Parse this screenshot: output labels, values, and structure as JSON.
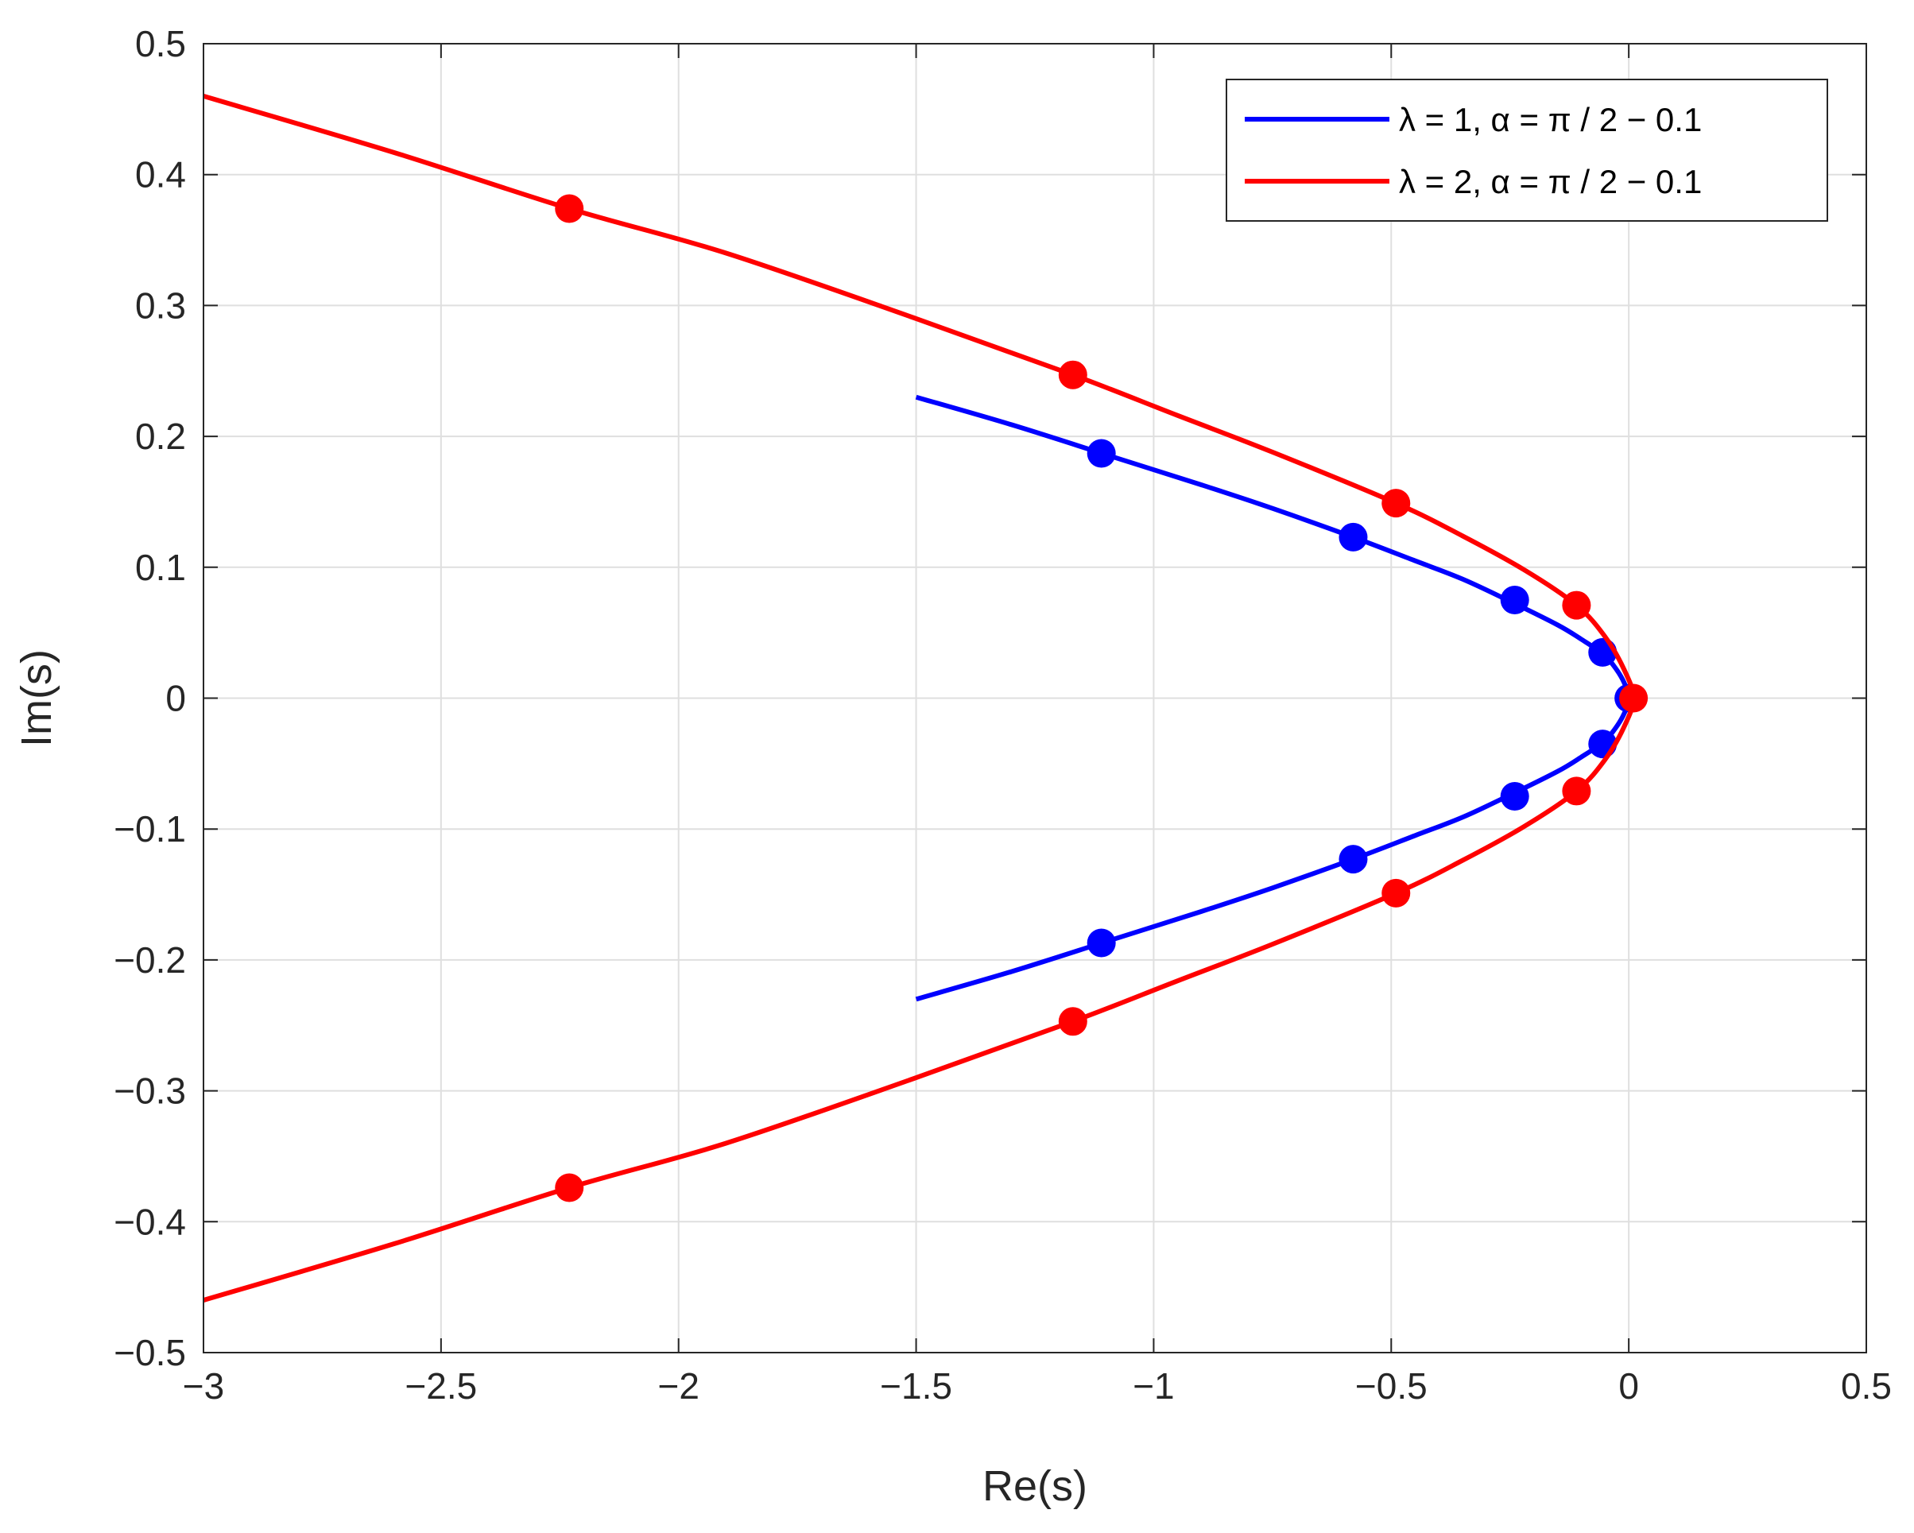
{
  "chart_data": {
    "type": "line",
    "title": "",
    "xlabel": "Re(s)",
    "ylabel": "Im(s)",
    "xlim": [
      -3,
      0.5
    ],
    "ylim": [
      -0.5,
      0.5
    ],
    "xticks": [
      -3,
      -2.5,
      -2,
      -1.5,
      -1,
      -0.5,
      0,
      0.5
    ],
    "xtick_labels": [
      "−3",
      "−2.5",
      "−2",
      "−1.5",
      "−1",
      "−0.5",
      "0",
      "0.5"
    ],
    "yticks": [
      -0.5,
      -0.4,
      -0.3,
      -0.2,
      -0.1,
      0,
      0.1,
      0.2,
      0.3,
      0.4,
      0.5
    ],
    "ytick_labels": [
      "−0.5",
      "−0.4",
      "−0.3",
      "−0.2",
      "−0.1",
      "0",
      "0.1",
      "0.2",
      "0.3",
      "0.4",
      "0.5"
    ],
    "grid": true,
    "legend_position": "top-right",
    "series": [
      {
        "name": "λ = 1, α = π / 2 − 0.1",
        "color": "#0000ff",
        "curve": {
          "x": [
            -1.5,
            -1.3,
            -1.1,
            -0.9,
            -0.75,
            -0.58,
            -0.45,
            -0.35,
            -0.25,
            -0.15,
            -0.1,
            -0.055,
            -0.03,
            -0.01,
            0.0,
            -0.01,
            -0.03,
            -0.055,
            -0.1,
            -0.15,
            -0.25,
            -0.35,
            -0.45,
            -0.58,
            -0.75,
            -0.9,
            -1.1,
            -1.3,
            -1.5
          ],
          "y": [
            0.23,
            0.209,
            0.186,
            0.163,
            0.145,
            0.123,
            0.105,
            0.091,
            0.074,
            0.056,
            0.045,
            0.034,
            0.024,
            0.012,
            0.0,
            -0.012,
            -0.024,
            -0.034,
            -0.045,
            -0.056,
            -0.074,
            -0.091,
            -0.105,
            -0.123,
            -0.145,
            -0.163,
            -0.186,
            -0.209,
            -0.23
          ]
        },
        "markers": {
          "x": [
            -1.11,
            -0.58,
            -0.24,
            -0.055,
            0.0,
            -0.055,
            -0.24,
            -0.58,
            -1.11
          ],
          "y": [
            0.187,
            0.123,
            0.075,
            0.035,
            0.0,
            -0.035,
            -0.075,
            -0.123,
            -0.187
          ]
        }
      },
      {
        "name": "λ = 2, α = π / 2 − 0.1",
        "color": "#ff0000",
        "curve": {
          "x": [
            -3.0,
            -2.6,
            -2.23,
            -1.9,
            -1.5,
            -1.17,
            -0.95,
            -0.75,
            -0.49,
            -0.35,
            -0.22,
            -0.11,
            -0.05,
            -0.01,
            0.01,
            -0.01,
            -0.05,
            -0.11,
            -0.22,
            -0.35,
            -0.49,
            -0.75,
            -0.95,
            -1.17,
            -1.5,
            -1.9,
            -2.23,
            -2.6,
            -3.0
          ],
          "y": [
            0.46,
            0.417,
            0.374,
            0.34,
            0.29,
            0.247,
            0.216,
            0.188,
            0.149,
            0.124,
            0.098,
            0.071,
            0.047,
            0.022,
            0.0,
            -0.022,
            -0.047,
            -0.071,
            -0.098,
            -0.124,
            -0.149,
            -0.188,
            -0.216,
            -0.247,
            -0.29,
            -0.34,
            -0.374,
            -0.417,
            -0.46
          ]
        },
        "markers": {
          "x": [
            -2.23,
            -1.17,
            -0.49,
            -0.11,
            0.01,
            -0.11,
            -0.49,
            -1.17,
            -2.23
          ],
          "y": [
            0.374,
            0.247,
            0.149,
            0.071,
            0.0,
            -0.071,
            -0.149,
            -0.247,
            -0.374
          ]
        }
      }
    ]
  }
}
